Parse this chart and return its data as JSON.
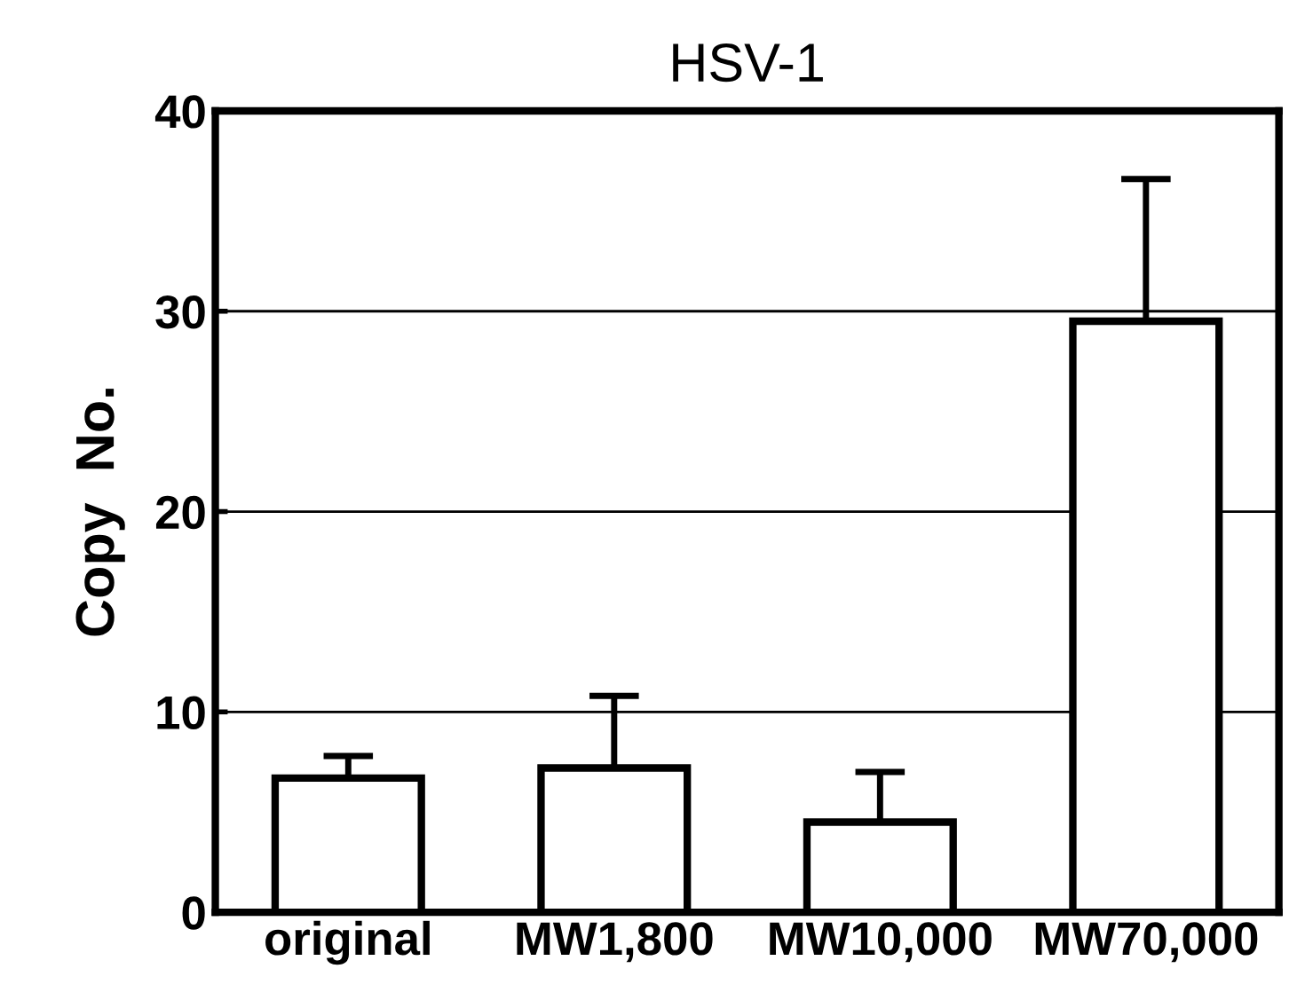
{
  "chart_data": {
    "type": "bar",
    "title": "HSV-1",
    "ylabel": "Copy  No.",
    "categories": [
      "original",
      "MW1,800",
      "MW10,000",
      "MW70,000"
    ],
    "values": [
      6.7,
      7.2,
      4.5,
      29.5
    ],
    "errors": [
      [
        6.7,
        7.8
      ],
      [
        7.2,
        10.8
      ],
      [
        4.5,
        7.0
      ],
      [
        29.5,
        36.6
      ]
    ],
    "color": "#ffffff",
    "ylim": [
      0,
      40
    ],
    "yticks": [
      0,
      10,
      20,
      30,
      40
    ],
    "grid": "y"
  }
}
